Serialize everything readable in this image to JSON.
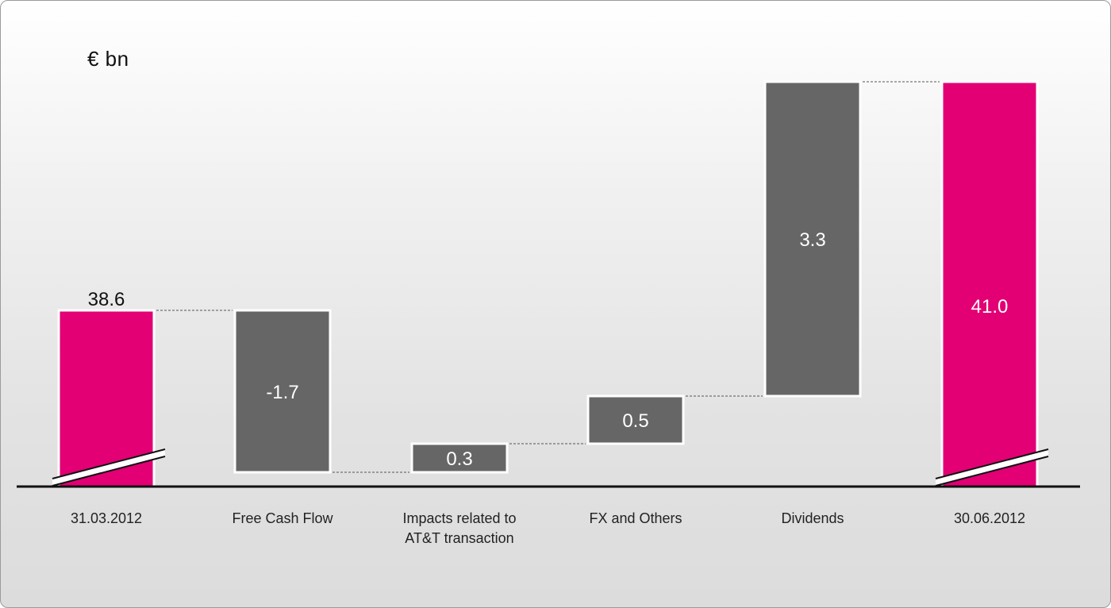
{
  "chart_data": {
    "type": "bar",
    "subtype": "waterfall",
    "unit_label": "€ bn",
    "categories": [
      "31.03.2012",
      "Free Cash Flow",
      "Impacts related to\nAT&T transaction",
      "FX and Others",
      "Dividends",
      "30.06.2012"
    ],
    "bars": [
      {
        "kind": "total",
        "label": "38.6",
        "value": 38.6,
        "color": "#e20074"
      },
      {
        "kind": "delta",
        "label": "-1.7",
        "value": -1.7,
        "color": "#666666"
      },
      {
        "kind": "delta",
        "label": "0.3",
        "value": 0.3,
        "color": "#666666"
      },
      {
        "kind": "delta",
        "label": "0.5",
        "value": 0.5,
        "color": "#666666"
      },
      {
        "kind": "delta",
        "label": "3.3",
        "value": 3.3,
        "color": "#666666"
      },
      {
        "kind": "total",
        "label": "41.0",
        "value": 41.0,
        "color": "#e20074"
      }
    ],
    "axis_break": true,
    "y_axis_visible": false,
    "grid": false
  }
}
